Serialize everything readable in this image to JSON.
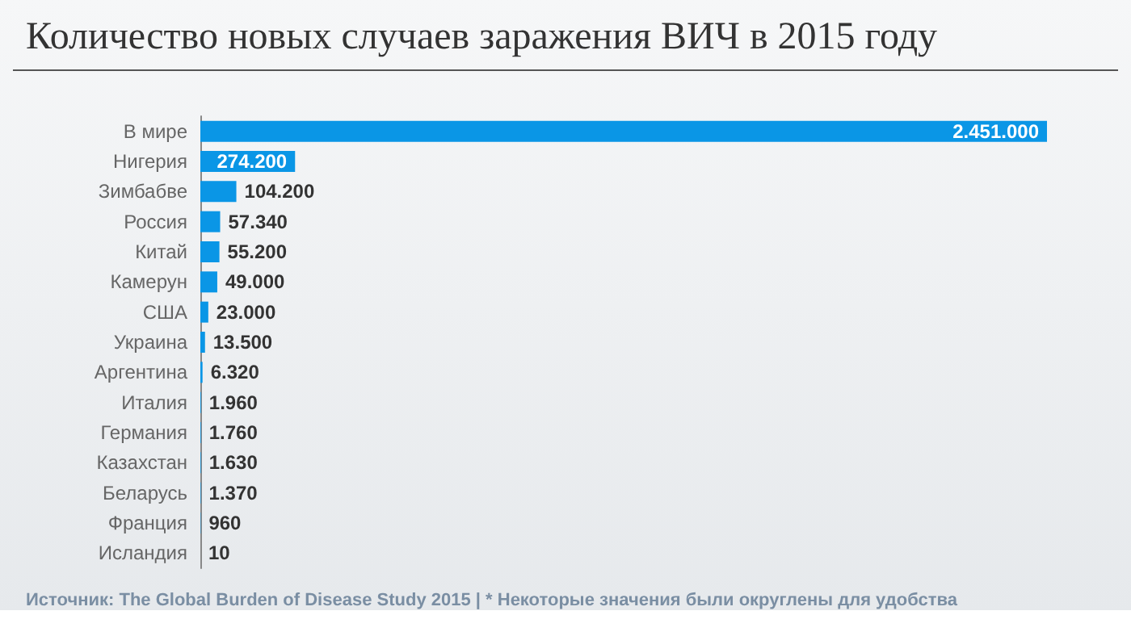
{
  "chart_data": {
    "type": "bar",
    "orientation": "horizontal",
    "title": "Количество новых случаев заражения ВИЧ в 2015 году",
    "categories": [
      "В мире",
      "Нигерия",
      "Зимбабве",
      "Россия",
      "Китай",
      "Камерун",
      "США",
      "Украина",
      "Аргентина",
      "Италия",
      "Германия",
      "Казахстан",
      "Беларусь",
      "Франция",
      "Исландия"
    ],
    "values": [
      2451000,
      274200,
      104200,
      57340,
      55200,
      49000,
      23000,
      13500,
      6320,
      1960,
      1760,
      1630,
      1370,
      960,
      10
    ],
    "value_labels": [
      "2.451.000",
      "274.200",
      "104.200",
      "57.340",
      "55.200",
      "49.000",
      "23.000",
      "13.500",
      "6.320",
      "1.960",
      "1.760",
      "1.630",
      "1.370",
      "960",
      "10"
    ],
    "color": "#0a96e6",
    "annotations": [
      "Источник: The Global Burden of Disease Study 2015 | * Некоторые значения были округлены для удобства"
    ]
  }
}
